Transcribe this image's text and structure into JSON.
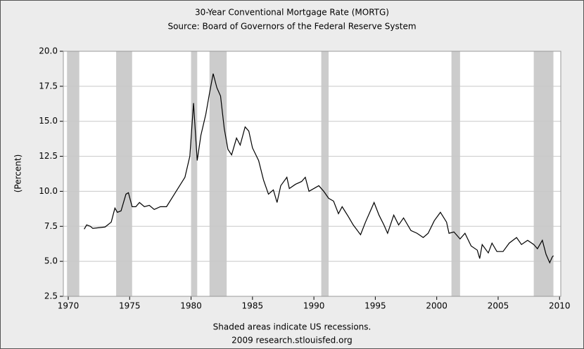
{
  "chart_data": {
    "type": "line",
    "title": "30-Year Conventional Mortgage Rate (MORTG)",
    "subtitle": "Source: Board of Governors of the Federal Reserve System",
    "y_label": "(Percent)",
    "footnote": "Shaded areas indicate US recessions.",
    "credit": "2009 research.stlouisfed.org",
    "x": [
      1971.3,
      1971.5,
      1971.8,
      1972.0,
      1972.5,
      1973.0,
      1973.5,
      1973.8,
      1974.0,
      1974.3,
      1974.7,
      1974.9,
      1975.2,
      1975.5,
      1975.8,
      1976.2,
      1976.6,
      1977.0,
      1977.5,
      1978.0,
      1978.5,
      1979.0,
      1979.5,
      1979.9,
      1980.2,
      1980.5,
      1980.8,
      1981.2,
      1981.5,
      1981.8,
      1982.1,
      1982.4,
      1982.7,
      1983.0,
      1983.3,
      1983.7,
      1984.0,
      1984.4,
      1984.7,
      1985.0,
      1985.5,
      1985.9,
      1986.3,
      1986.7,
      1987.0,
      1987.3,
      1987.8,
      1988.0,
      1988.5,
      1989.0,
      1989.3,
      1989.6,
      1990.0,
      1990.4,
      1990.8,
      1991.2,
      1991.6,
      1992.0,
      1992.3,
      1992.8,
      1993.2,
      1993.8,
      1994.2,
      1994.6,
      1994.9,
      1995.3,
      1995.7,
      1996.0,
      1996.5,
      1996.9,
      1997.3,
      1997.9,
      1998.4,
      1998.9,
      1999.3,
      1999.8,
      2000.3,
      2000.8,
      2001.0,
      2001.4,
      2001.9,
      2002.3,
      2002.8,
      2003.3,
      2003.5,
      2003.7,
      2004.2,
      2004.5,
      2004.9,
      2005.4,
      2005.9,
      2006.5,
      2006.9,
      2007.4,
      2007.9,
      2008.2,
      2008.6,
      2008.9,
      2009.2,
      2009.4,
      2009.5
    ],
    "series": [
      {
        "color": "#000000",
        "values": [
          7.3,
          7.6,
          7.5,
          7.35,
          7.4,
          7.45,
          7.8,
          8.8,
          8.5,
          8.6,
          9.8,
          9.9,
          8.9,
          8.9,
          9.2,
          8.9,
          9.0,
          8.7,
          8.9,
          8.9,
          9.6,
          10.3,
          11.0,
          12.5,
          16.3,
          12.2,
          14.0,
          15.5,
          17.0,
          18.4,
          17.4,
          16.8,
          14.5,
          13.0,
          12.6,
          13.8,
          13.3,
          14.6,
          14.3,
          13.1,
          12.2,
          10.8,
          9.8,
          10.1,
          9.2,
          10.4,
          11.0,
          10.2,
          10.5,
          10.7,
          11.0,
          10.0,
          10.2,
          10.4,
          10.0,
          9.5,
          9.3,
          8.4,
          8.9,
          8.2,
          7.6,
          6.9,
          7.8,
          8.6,
          9.2,
          8.3,
          7.6,
          7.0,
          8.3,
          7.6,
          8.1,
          7.2,
          7.0,
          6.7,
          7.0,
          7.9,
          8.5,
          7.8,
          7.0,
          7.1,
          6.6,
          7.0,
          6.1,
          5.8,
          5.2,
          6.2,
          5.6,
          6.3,
          5.7,
          5.7,
          6.3,
          6.7,
          6.2,
          6.5,
          6.2,
          5.9,
          6.5,
          5.5,
          4.9,
          5.3,
          5.4
        ]
      }
    ],
    "recessions": [
      [
        1969.9,
        1970.9
      ],
      [
        1973.9,
        1975.2
      ],
      [
        1980.0,
        1980.5
      ],
      [
        1981.5,
        1982.9
      ],
      [
        1990.6,
        1991.2
      ],
      [
        2001.2,
        2001.9
      ],
      [
        2007.9,
        2009.5
      ]
    ],
    "recession_color": "#cccccc",
    "xlim": [
      1969.6,
      2010.1
    ],
    "xticks": [
      1970,
      1975,
      1980,
      1985,
      1990,
      1995,
      2000,
      2005,
      2010
    ],
    "ylim": [
      2.5,
      20
    ],
    "yticks": [
      {
        "value": 2.5,
        "label": "2.5"
      },
      {
        "value": 5,
        "label": "5.0"
      },
      {
        "value": 7.5,
        "label": "7.5"
      },
      {
        "value": 10,
        "label": "10.0"
      },
      {
        "value": 12.5,
        "label": "12.5"
      },
      {
        "value": 15,
        "label": "15.0"
      },
      {
        "value": 17.5,
        "label": "17.5"
      },
      {
        "value": 20,
        "label": "20.0"
      }
    ],
    "grid": true
  }
}
